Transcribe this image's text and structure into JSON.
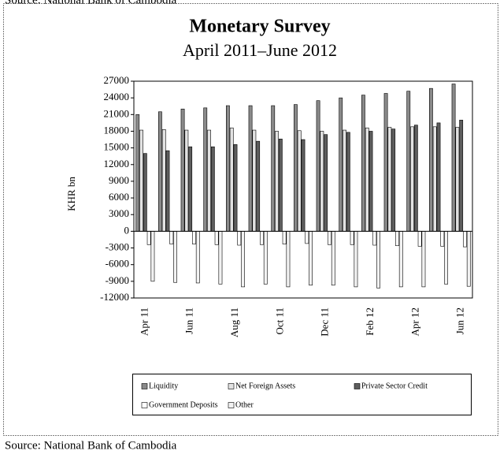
{
  "chart_data": {
    "type": "bar",
    "title": "Monetary Survey",
    "subtitle": "April 2011–June 2012",
    "y_label": "KHR bn",
    "source": "Source: National Bank of Cambodia",
    "categories": [
      "Apr 11",
      null,
      "Jun 11",
      null,
      "Aug 11",
      null,
      "Oct 11",
      null,
      "Dec 11",
      null,
      "Feb 12",
      null,
      "Apr 12",
      null,
      "Jun 12"
    ],
    "ylim": [
      -12000,
      27000
    ],
    "yticks": [
      -12000,
      -9000,
      -6000,
      -3000,
      0,
      3000,
      6000,
      9000,
      12000,
      15000,
      18000,
      21000,
      24000,
      27000
    ],
    "series": [
      {
        "name": "Liquidity",
        "color": "#8a8a8a",
        "values": [
          21000,
          21500,
          22000,
          22200,
          22600,
          22600,
          22600,
          22800,
          23500,
          24000,
          24500,
          24800,
          25200,
          25700,
          26500
        ]
      },
      {
        "name": "Net Foreign Assets",
        "color": "#e2e2e2",
        "values": [
          18200,
          18300,
          18200,
          18200,
          18600,
          18200,
          18000,
          18100,
          18000,
          18200,
          18600,
          18700,
          18800,
          18800,
          18700
        ]
      },
      {
        "name": "Private Sector Credit",
        "color": "#5e5e5e",
        "values": [
          14000,
          14500,
          15200,
          15200,
          15600,
          16200,
          16600,
          16500,
          17400,
          17800,
          18000,
          18400,
          19100,
          19500,
          20000
        ]
      },
      {
        "name": "Government Deposits",
        "color": "#ffffff",
        "values": [
          -2400,
          -2300,
          -2300,
          -2400,
          -2500,
          -2400,
          -2300,
          -2200,
          -2400,
          -2400,
          -2500,
          -2600,
          -2700,
          -2700,
          -2800
        ]
      },
      {
        "name": "Other",
        "color": "#f2f2f2",
        "values": [
          -9000,
          -9200,
          -9300,
          -9500,
          -10000,
          -9500,
          -10000,
          -9700,
          -9700,
          -10000,
          -10200,
          -10000,
          -10000,
          -9500,
          -9900
        ]
      }
    ]
  }
}
